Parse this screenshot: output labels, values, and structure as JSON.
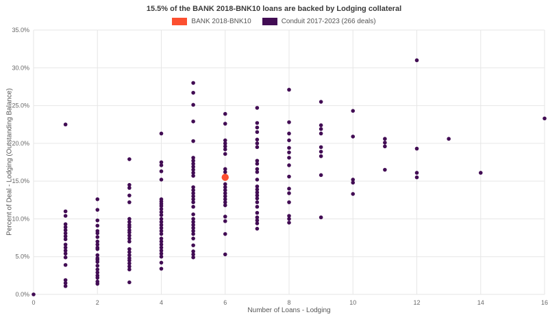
{
  "title": "15.5% of the BANK 2018-BNK10 loans are backed by Lodging collateral",
  "legend": {
    "items": [
      {
        "label": "BANK 2018-BNK10",
        "key": "bank"
      },
      {
        "label": "Conduit 2017-2023 (266 deals)",
        "key": "conduit"
      }
    ]
  },
  "chart_data": {
    "type": "scatter",
    "title": "15.5% of the BANK 2018-BNK10 loans are backed by Lodging collateral",
    "xlabel": "Number of Loans - Lodging",
    "ylabel": "Percent of Deal - Lodging (Outstanding Balance)",
    "xlim": [
      0,
      16
    ],
    "ylim": [
      0,
      35
    ],
    "x_ticks": [
      0,
      2,
      4,
      6,
      8,
      10,
      12,
      14,
      16
    ],
    "y_ticks": [
      "0.0%",
      "5.0%",
      "10.0%",
      "15.0%",
      "20.0%",
      "25.0%",
      "30.0%",
      "35.0%"
    ],
    "grid": true,
    "grid_color": "#e6e6e6",
    "tick_color": "#666666",
    "legend_position": "top-center",
    "series": [
      {
        "name": "Conduit 2017-2023 (266 deals)",
        "key": "conduit",
        "color": "#420d54",
        "marker_radius": 2.8,
        "points": [
          [
            0,
            0.0
          ],
          [
            1,
            22.5
          ],
          [
            1,
            11.0
          ],
          [
            1,
            10.4
          ],
          [
            1,
            9.3
          ],
          [
            1,
            8.9
          ],
          [
            1,
            8.5
          ],
          [
            1,
            8.1
          ],
          [
            1,
            7.7
          ],
          [
            1,
            7.3
          ],
          [
            1,
            6.6
          ],
          [
            1,
            6.2
          ],
          [
            1,
            5.8
          ],
          [
            1,
            5.4
          ],
          [
            1,
            4.9
          ],
          [
            1,
            3.9
          ],
          [
            1,
            1.9
          ],
          [
            1,
            1.5
          ],
          [
            1,
            1.1
          ],
          [
            2,
            12.6
          ],
          [
            2,
            11.2
          ],
          [
            2,
            9.8
          ],
          [
            2,
            9.1
          ],
          [
            2,
            8.4
          ],
          [
            2,
            8.1
          ],
          [
            2,
            7.6
          ],
          [
            2,
            7.0
          ],
          [
            2,
            6.6
          ],
          [
            2,
            6.2
          ],
          [
            2,
            6.0
          ],
          [
            2,
            5.2
          ],
          [
            2,
            4.8
          ],
          [
            2,
            4.6
          ],
          [
            2,
            4.3
          ],
          [
            2,
            3.8
          ],
          [
            2,
            3.3
          ],
          [
            2,
            2.9
          ],
          [
            2,
            2.5
          ],
          [
            2,
            2.2
          ],
          [
            2,
            1.7
          ],
          [
            2,
            1.4
          ],
          [
            3,
            17.9
          ],
          [
            3,
            14.5
          ],
          [
            3,
            14.1
          ],
          [
            3,
            13.1
          ],
          [
            3,
            12.2
          ],
          [
            3,
            10.0
          ],
          [
            3,
            9.6
          ],
          [
            3,
            9.2
          ],
          [
            3,
            8.9
          ],
          [
            3,
            8.5
          ],
          [
            3,
            8.2
          ],
          [
            3,
            7.8
          ],
          [
            3,
            7.4
          ],
          [
            3,
            7.0
          ],
          [
            3,
            6.0
          ],
          [
            3,
            5.6
          ],
          [
            3,
            5.2
          ],
          [
            3,
            4.8
          ],
          [
            3,
            4.5
          ],
          [
            3,
            4.1
          ],
          [
            3,
            3.7
          ],
          [
            3,
            3.3
          ],
          [
            3,
            1.6
          ],
          [
            4,
            21.3
          ],
          [
            4,
            17.5
          ],
          [
            4,
            17.1
          ],
          [
            4,
            16.3
          ],
          [
            4,
            15.2
          ],
          [
            4,
            12.6
          ],
          [
            4,
            12.3
          ],
          [
            4,
            12.0
          ],
          [
            4,
            11.7
          ],
          [
            4,
            11.3
          ],
          [
            4,
            10.9
          ],
          [
            4,
            10.5
          ],
          [
            4,
            10.0
          ],
          [
            4,
            9.6
          ],
          [
            4,
            9.2
          ],
          [
            4,
            8.8
          ],
          [
            4,
            8.4
          ],
          [
            4,
            8.0
          ],
          [
            4,
            7.4
          ],
          [
            4,
            7.0
          ],
          [
            4,
            6.6
          ],
          [
            4,
            6.2
          ],
          [
            4,
            5.8
          ],
          [
            4,
            5.4
          ],
          [
            4,
            5.0
          ],
          [
            4,
            4.2
          ],
          [
            4,
            3.4
          ],
          [
            5,
            28.0
          ],
          [
            5,
            26.7
          ],
          [
            5,
            25.1
          ],
          [
            5,
            22.9
          ],
          [
            5,
            20.3
          ],
          [
            5,
            18.1
          ],
          [
            5,
            17.7
          ],
          [
            5,
            17.3
          ],
          [
            5,
            16.9
          ],
          [
            5,
            16.5
          ],
          [
            5,
            16.1
          ],
          [
            5,
            15.7
          ],
          [
            5,
            14.2
          ],
          [
            5,
            13.8
          ],
          [
            5,
            13.4
          ],
          [
            5,
            13.0
          ],
          [
            5,
            12.6
          ],
          [
            5,
            12.2
          ],
          [
            5,
            11.6
          ],
          [
            5,
            10.6
          ],
          [
            5,
            10.0
          ],
          [
            5,
            9.6
          ],
          [
            5,
            9.2
          ],
          [
            5,
            8.8
          ],
          [
            5,
            8.4
          ],
          [
            5,
            8.0
          ],
          [
            5,
            7.4
          ],
          [
            5,
            6.5
          ],
          [
            5,
            5.7
          ],
          [
            5,
            5.3
          ],
          [
            5,
            4.9
          ],
          [
            6,
            23.9
          ],
          [
            6,
            22.6
          ],
          [
            6,
            20.4
          ],
          [
            6,
            20.0
          ],
          [
            6,
            19.6
          ],
          [
            6,
            19.2
          ],
          [
            6,
            18.6
          ],
          [
            6,
            16.6
          ],
          [
            6,
            16.2
          ],
          [
            6,
            14.6
          ],
          [
            6,
            14.2
          ],
          [
            6,
            13.8
          ],
          [
            6,
            13.4
          ],
          [
            6,
            13.0
          ],
          [
            6,
            12.6
          ],
          [
            6,
            12.2
          ],
          [
            6,
            11.8
          ],
          [
            6,
            10.3
          ],
          [
            6,
            9.7
          ],
          [
            6,
            8.0
          ],
          [
            6,
            5.3
          ],
          [
            7,
            24.7
          ],
          [
            7,
            22.7
          ],
          [
            7,
            22.1
          ],
          [
            7,
            21.5
          ],
          [
            7,
            20.5
          ],
          [
            7,
            20.0
          ],
          [
            7,
            19.5
          ],
          [
            7,
            17.7
          ],
          [
            7,
            17.3
          ],
          [
            7,
            16.6
          ],
          [
            7,
            16.2
          ],
          [
            7,
            15.2
          ],
          [
            7,
            14.3
          ],
          [
            7,
            13.9
          ],
          [
            7,
            13.5
          ],
          [
            7,
            13.1
          ],
          [
            7,
            12.7
          ],
          [
            7,
            12.2
          ],
          [
            7,
            11.6
          ],
          [
            7,
            10.8
          ],
          [
            7,
            10.2
          ],
          [
            7,
            9.8
          ],
          [
            7,
            9.4
          ],
          [
            7,
            8.7
          ],
          [
            8,
            27.1
          ],
          [
            8,
            22.8
          ],
          [
            8,
            21.3
          ],
          [
            8,
            20.4
          ],
          [
            8,
            19.4
          ],
          [
            8,
            18.8
          ],
          [
            8,
            18.1
          ],
          [
            8,
            17.1
          ],
          [
            8,
            15.6
          ],
          [
            8,
            14.0
          ],
          [
            8,
            13.4
          ],
          [
            8,
            12.2
          ],
          [
            8,
            10.4
          ],
          [
            8,
            10.0
          ],
          [
            8,
            9.5
          ],
          [
            9,
            25.5
          ],
          [
            9,
            22.4
          ],
          [
            9,
            21.9
          ],
          [
            9,
            21.3
          ],
          [
            9,
            19.5
          ],
          [
            9,
            18.9
          ],
          [
            9,
            18.3
          ],
          [
            9,
            15.8
          ],
          [
            9,
            10.2
          ],
          [
            10,
            24.3
          ],
          [
            10,
            20.9
          ],
          [
            10,
            15.2
          ],
          [
            10,
            14.8
          ],
          [
            10,
            13.3
          ],
          [
            11,
            20.6
          ],
          [
            11,
            20.1
          ],
          [
            11,
            19.6
          ],
          [
            11,
            16.5
          ],
          [
            12,
            31.0
          ],
          [
            12,
            19.3
          ],
          [
            12,
            16.1
          ],
          [
            12,
            15.5
          ],
          [
            13,
            20.6
          ],
          [
            14,
            16.1
          ],
          [
            16,
            23.3
          ]
        ]
      },
      {
        "name": "BANK 2018-BNK10",
        "key": "bank",
        "color": "#fc4f30",
        "marker_radius": 5.2,
        "points": [
          [
            6,
            15.5
          ]
        ]
      }
    ]
  }
}
